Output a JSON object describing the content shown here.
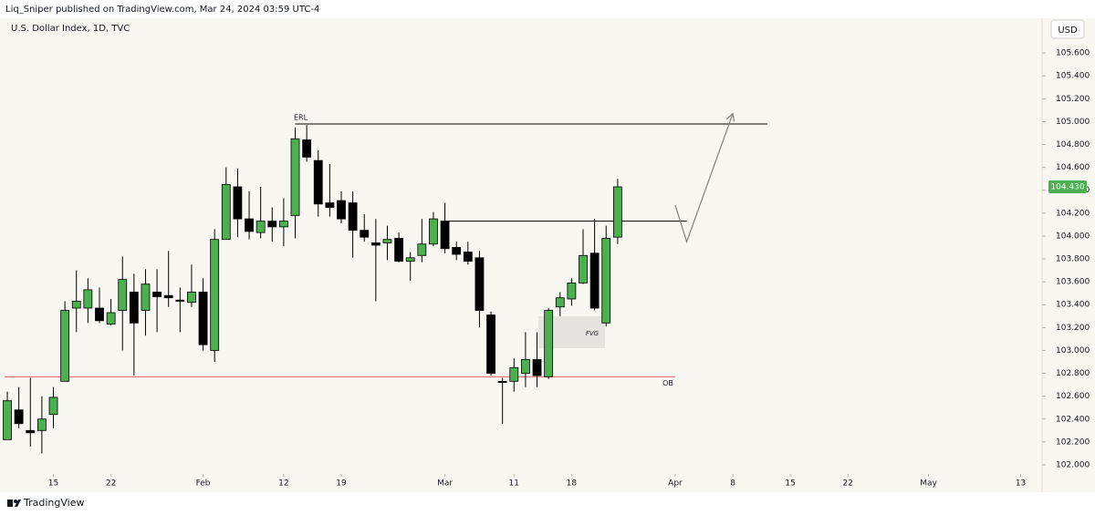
{
  "header": {
    "publisher": "Liq_Sniper published on TradingView.com, Mar 24, 2024 03:59 UTC-4"
  },
  "footer": {
    "brand": "TradingView"
  },
  "chart_data": {
    "type": "candlestick",
    "title": "U.S. Dollar Index, 1D, TVC",
    "currency": "USD",
    "x": [
      0,
      1,
      2,
      3,
      4,
      5,
      6,
      7,
      8,
      9,
      10,
      11,
      12,
      13,
      14,
      15,
      16,
      17,
      18,
      19,
      20,
      21,
      22,
      23,
      24,
      25,
      26,
      27,
      28,
      29,
      30,
      31,
      32,
      33,
      34,
      35,
      36,
      37,
      38,
      39,
      40,
      41,
      42,
      43,
      44,
      45,
      46,
      47,
      48,
      49,
      50,
      51,
      52,
      53
    ],
    "open": [
      102.22,
      102.48,
      102.3,
      102.3,
      102.44,
      102.73,
      103.37,
      103.37,
      103.37,
      103.23,
      103.35,
      103.51,
      103.35,
      103.51,
      103.48,
      103.44,
      103.42,
      103.51,
      103.0,
      103.97,
      104.43,
      104.15,
      104.03,
      104.13,
      104.08,
      104.18,
      104.84,
      104.66,
      104.29,
      104.31,
      104.29,
      104.05,
      103.94,
      103.94,
      103.98,
      103.78,
      103.83,
      103.93,
      104.13,
      103.9,
      103.86,
      103.81,
      103.31,
      102.73,
      102.73,
      102.8,
      102.92,
      102.77,
      103.38,
      103.45,
      103.59,
      103.85,
      103.24,
      103.99
    ],
    "high": [
      102.64,
      102.68,
      102.76,
      102.6,
      102.68,
      103.43,
      103.7,
      103.63,
      103.55,
      103.45,
      103.82,
      103.67,
      103.71,
      103.71,
      103.87,
      103.55,
      103.75,
      103.63,
      104.06,
      104.6,
      104.59,
      104.39,
      104.43,
      104.25,
      104.33,
      104.95,
      104.97,
      104.75,
      104.63,
      104.39,
      104.39,
      104.19,
      104.15,
      104.09,
      104.03,
      103.86,
      104.15,
      104.21,
      104.29,
      103.95,
      103.95,
      103.87,
      103.34,
      102.76,
      102.93,
      103.16,
      103.16,
      103.37,
      103.51,
      103.63,
      104.06,
      104.15,
      104.09,
      104.5
    ],
    "low": [
      102.22,
      102.32,
      102.16,
      102.1,
      102.32,
      102.73,
      103.16,
      103.24,
      103.24,
      103.22,
      103.0,
      102.78,
      103.13,
      103.16,
      103.38,
      103.16,
      103.38,
      103.0,
      102.9,
      103.97,
      103.99,
      103.97,
      103.98,
      103.95,
      103.91,
      103.98,
      104.65,
      104.17,
      104.17,
      104.11,
      103.81,
      103.95,
      103.43,
      103.79,
      103.77,
      103.61,
      103.77,
      103.91,
      103.85,
      103.79,
      103.75,
      103.2,
      102.78,
      102.36,
      102.64,
      102.68,
      102.68,
      102.75,
      103.3,
      103.39,
      103.58,
      103.35,
      103.21,
      103.93
    ],
    "close": [
      102.56,
      102.36,
      102.28,
      102.4,
      102.59,
      103.35,
      103.43,
      103.53,
      103.26,
      103.33,
      103.62,
      103.24,
      103.58,
      103.47,
      103.46,
      103.43,
      103.51,
      103.05,
      103.97,
      104.45,
      104.15,
      104.04,
      104.13,
      104.08,
      104.13,
      104.85,
      104.69,
      104.28,
      104.25,
      104.15,
      104.05,
      103.99,
      103.92,
      103.97,
      103.78,
      103.81,
      103.93,
      104.15,
      103.89,
      103.84,
      103.78,
      103.35,
      102.8,
      102.72,
      102.85,
      102.92,
      102.78,
      103.35,
      103.46,
      103.59,
      103.83,
      103.37,
      103.98,
      104.43
    ],
    "up_color": "#4caf50",
    "down_color": "#000000",
    "xlim": [
      -0.24,
      89.7
    ],
    "xticks": [
      {
        "value": 4,
        "label": "15"
      },
      {
        "value": 9,
        "label": "22"
      },
      {
        "value": 17,
        "label": "Feb"
      },
      {
        "value": 24,
        "label": "12"
      },
      {
        "value": 29,
        "label": "19"
      },
      {
        "value": 38,
        "label": "Mar"
      },
      {
        "value": 44,
        "label": "11"
      },
      {
        "value": 49,
        "label": "18"
      },
      {
        "value": 58,
        "label": "Apr"
      },
      {
        "value": 63,
        "label": "8"
      },
      {
        "value": 68,
        "label": "15"
      },
      {
        "value": 73,
        "label": "22"
      },
      {
        "value": 80,
        "label": "May"
      },
      {
        "value": 88,
        "label": "13"
      }
    ],
    "ylim": [
      101.92,
      105.84
    ],
    "yticks": [
      {
        "value": 102.0,
        "label": "102.000"
      },
      {
        "value": 102.2,
        "label": "102.200"
      },
      {
        "value": 102.4,
        "label": "102.400"
      },
      {
        "value": 102.6,
        "label": "102.600"
      },
      {
        "value": 102.8,
        "label": "102.800"
      },
      {
        "value": 103.0,
        "label": "103.000"
      },
      {
        "value": 103.2,
        "label": "103.200"
      },
      {
        "value": 103.4,
        "label": "103.400"
      },
      {
        "value": 103.6,
        "label": "103.600"
      },
      {
        "value": 103.8,
        "label": "103.800"
      },
      {
        "value": 104.0,
        "label": "104.000"
      },
      {
        "value": 104.2,
        "label": "104.200"
      },
      {
        "value": 104.4,
        "label": "104.400"
      },
      {
        "value": 104.6,
        "label": "104.600"
      },
      {
        "value": 104.8,
        "label": "104.800"
      },
      {
        "value": 105.0,
        "label": "105.000"
      },
      {
        "value": 105.2,
        "label": "105.200"
      },
      {
        "value": 105.4,
        "label": "105.400"
      },
      {
        "value": 105.6,
        "label": "105.600"
      }
    ],
    "last_price": {
      "value": 104.43,
      "label": "104.430"
    },
    "levels": [
      {
        "label": "ERL",
        "y": 104.98,
        "x": [
          25,
          66
        ],
        "color": "#000000"
      },
      {
        "y": 104.13,
        "x": [
          38,
          59
        ],
        "color": "#000000"
      },
      {
        "label": "OB",
        "y": 102.77,
        "x": [
          -0.24,
          58
        ],
        "color": "#e06666"
      }
    ],
    "zone": {
      "label": "FVG",
      "x": [
        46.1,
        51.9
      ],
      "y": [
        103.02,
        103.3
      ],
      "color": "#e6e4e0"
    },
    "projection": {
      "x": [
        58,
        59,
        63
      ],
      "y": [
        104.27,
        103.95,
        105.07
      ],
      "color": "#808080"
    }
  }
}
